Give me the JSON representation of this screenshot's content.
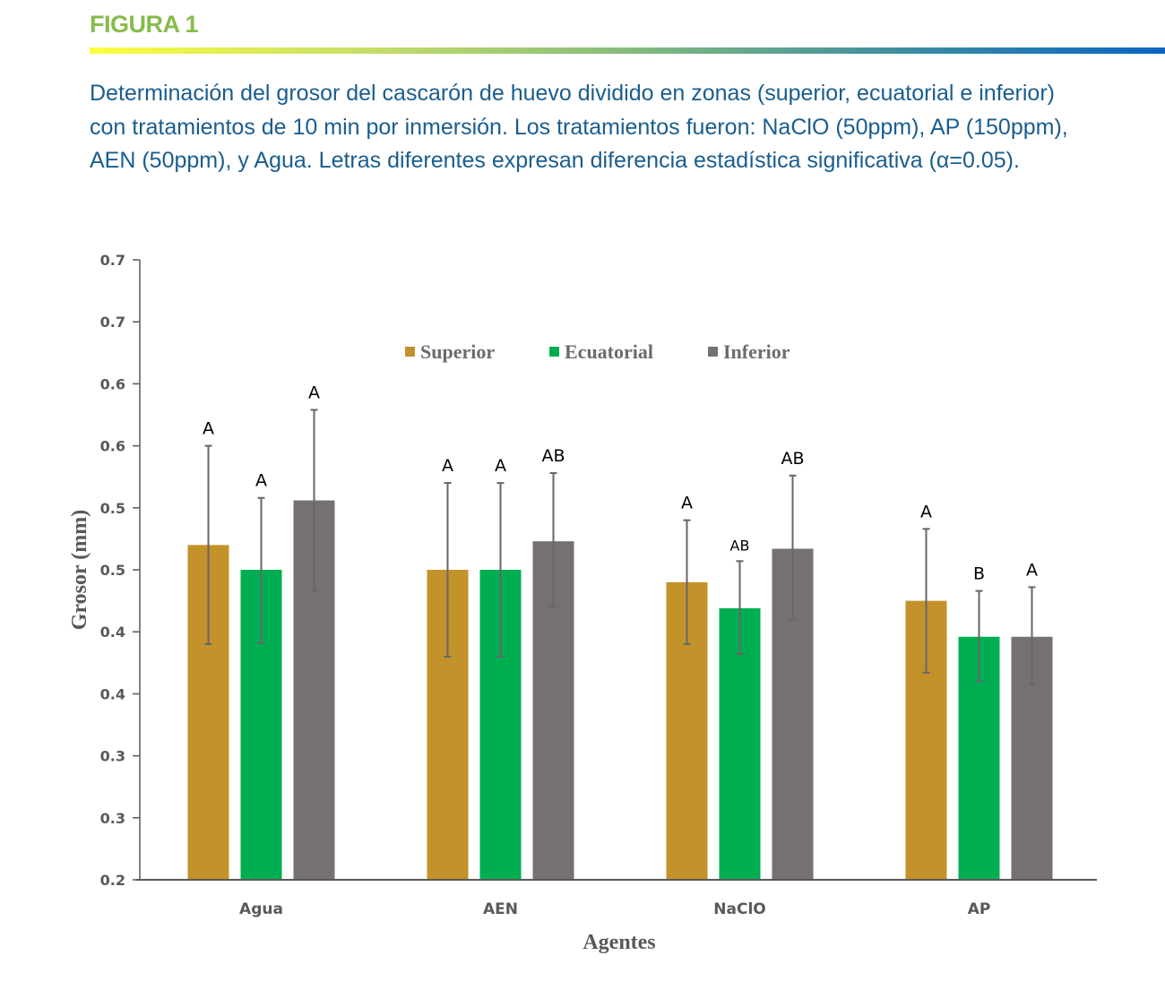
{
  "figure": {
    "label": "FIGURA 1",
    "caption": "Determinación del grosor del cascarón de huevo dividido en zonas (superior, ecuatorial e inferior) con tratamientos de 10 min por inmersión. Los tratamientos fueron: NaClO (50ppm), AP (150ppm), AEN (50ppm), y Agua. Letras diferentes expresan diferencia estadística significativa (α=0.05)."
  },
  "chart_data": {
    "type": "bar",
    "title": "",
    "xlabel": "Agentes",
    "ylabel": "Grosor (mm)",
    "ylim": [
      0.2,
      0.7
    ],
    "yticks": [
      0.2,
      0.25,
      0.3,
      0.35,
      0.4,
      0.45,
      0.5,
      0.55,
      0.6,
      0.65,
      0.7
    ],
    "ytick_labels": [
      "0.2",
      "0.3",
      "0.3",
      "0.4",
      "0.4",
      "0.5",
      "0.5",
      "0.6",
      "0.6",
      "0.7",
      "0.7"
    ],
    "grid": false,
    "legend_position": "top-center",
    "categories": [
      "Agua",
      "AEN",
      "NaClO",
      "AP"
    ],
    "series": [
      {
        "name": "Superior",
        "color": "#c4922a",
        "values": [
          0.47,
          0.45,
          0.44,
          0.425
        ],
        "error_low": [
          0.39,
          0.38,
          0.39,
          0.367
        ],
        "error_high": [
          0.55,
          0.52,
          0.49,
          0.483
        ],
        "significance": [
          "A",
          "A",
          "A",
          "A"
        ]
      },
      {
        "name": "Ecuatorial",
        "color": "#00ae52",
        "values": [
          0.45,
          0.45,
          0.419,
          0.396
        ],
        "error_low": [
          0.391,
          0.38,
          0.382,
          0.36
        ],
        "error_high": [
          0.508,
          0.52,
          0.457,
          0.433
        ],
        "significance": [
          "A",
          "A",
          "AB",
          "B"
        ]
      },
      {
        "name": "Inferior",
        "color": "#767171",
        "values": [
          0.506,
          0.473,
          0.467,
          0.396
        ],
        "error_low": [
          0.433,
          0.42,
          0.41,
          0.358
        ],
        "error_high": [
          0.579,
          0.528,
          0.526,
          0.436
        ],
        "significance": [
          "A",
          "AB",
          "AB",
          "A"
        ]
      }
    ]
  }
}
